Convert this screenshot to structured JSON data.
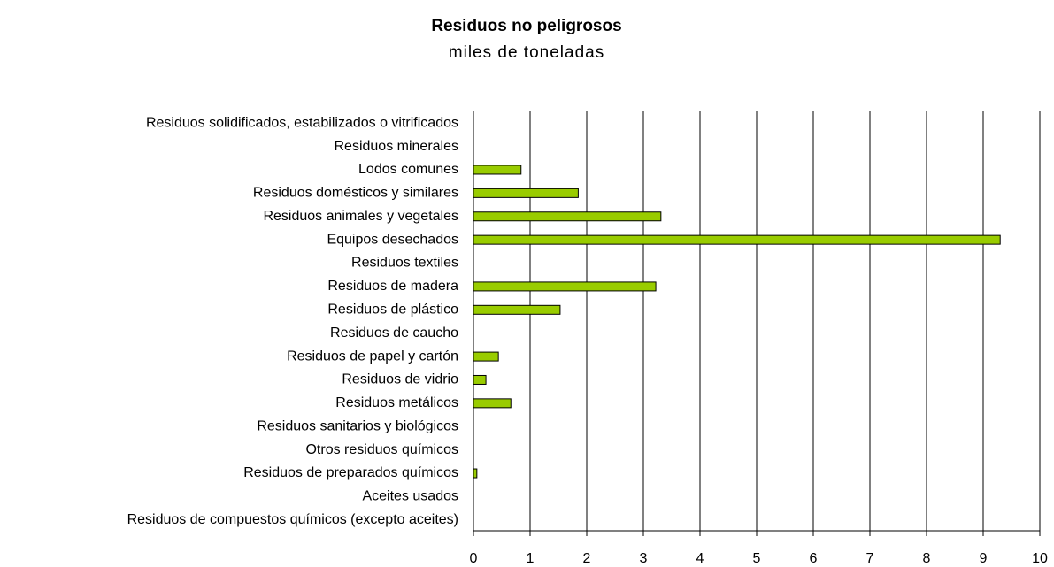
{
  "chart_data": {
    "type": "barh",
    "title": "Residuos no peligrosos",
    "subtitle": "miles de toneladas",
    "categories": [
      "Residuos solidificados, estabilizados o vitrificados",
      "Residuos minerales",
      "Lodos comunes",
      "Residuos domésticos y similares",
      "Residuos animales y vegetales",
      "Equipos desechados",
      "Residuos textiles",
      "Residuos de madera",
      "Residuos de plástico",
      "Residuos de caucho",
      "Residuos de papel y cartón",
      "Residuos de vidrio",
      "Residuos metálicos",
      "Residuos sanitarios y biológicos",
      "Otros residuos químicos",
      "Residuos de preparados químicos",
      "Aceites usados",
      "Residuos de compuestos químicos (excepto aceites)"
    ],
    "values": [
      0,
      0,
      0.84,
      1.85,
      3.31,
      9.3,
      0,
      3.22,
      1.53,
      0,
      0.44,
      0.22,
      0.66,
      0,
      0,
      0.06,
      0,
      0
    ],
    "color": "#99cc00",
    "xlim": [
      0,
      10
    ],
    "xticks": [
      0,
      1,
      2,
      3,
      4,
      5,
      6,
      7,
      8,
      9,
      10
    ],
    "grid": true
  }
}
